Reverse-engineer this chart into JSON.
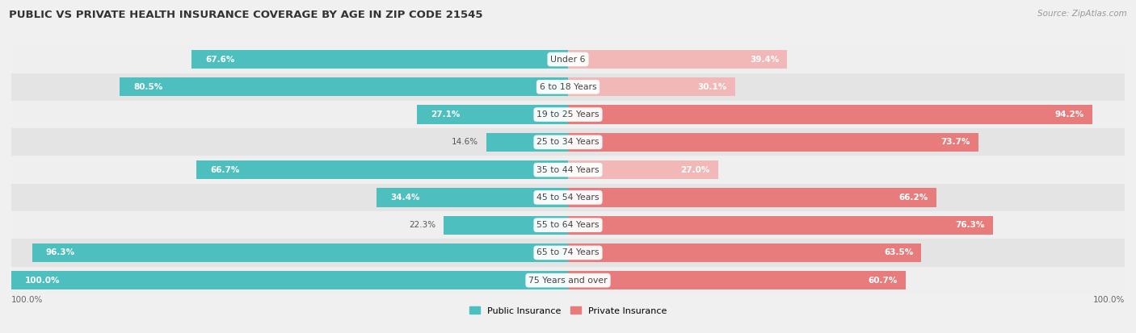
{
  "title": "PUBLIC VS PRIVATE HEALTH INSURANCE COVERAGE BY AGE IN ZIP CODE 21545",
  "source": "Source: ZipAtlas.com",
  "categories": [
    "Under 6",
    "6 to 18 Years",
    "19 to 25 Years",
    "25 to 34 Years",
    "35 to 44 Years",
    "45 to 54 Years",
    "55 to 64 Years",
    "65 to 74 Years",
    "75 Years and over"
  ],
  "public_values": [
    67.6,
    80.5,
    27.1,
    14.6,
    66.7,
    34.4,
    22.3,
    96.3,
    100.0
  ],
  "private_values": [
    39.4,
    30.1,
    94.2,
    73.7,
    27.0,
    66.2,
    76.3,
    63.5,
    60.7
  ],
  "public_color": "#4dbfbf",
  "private_color": "#e87c7c",
  "private_color_light": "#f2b8b8",
  "figsize": [
    14.06,
    4.13
  ],
  "dpi": 100
}
